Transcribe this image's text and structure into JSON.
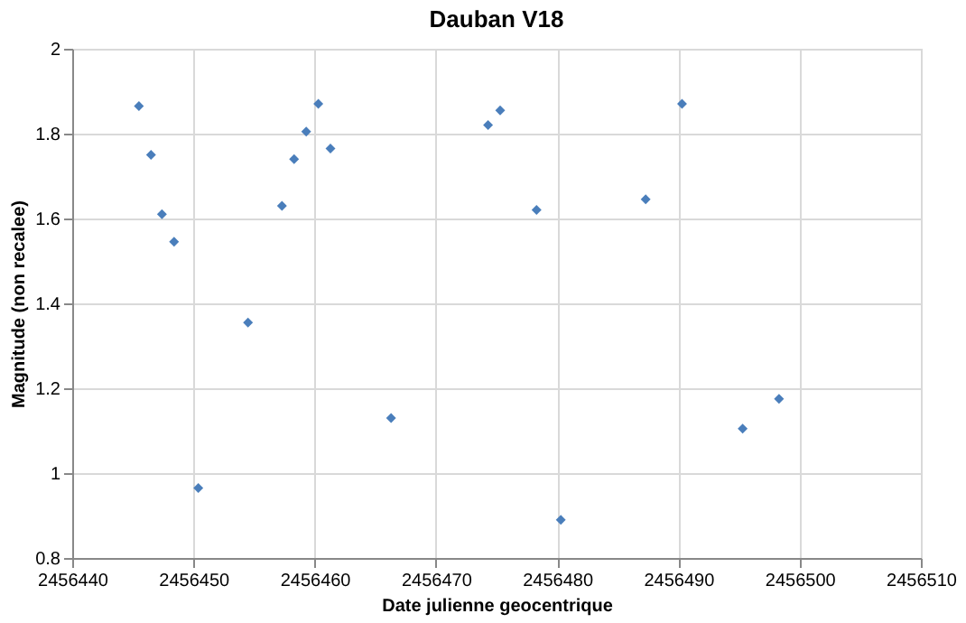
{
  "chart_data": {
    "type": "scatter",
    "title": "Dauban V18",
    "xlabel": "Date julienne geocentrique",
    "ylabel": "Magnitude (non recalee)",
    "x": [
      2456445.5,
      2456446.5,
      2456447.4,
      2456448.4,
      2456450.4,
      2456454.5,
      2456457.3,
      2456458.3,
      2456459.3,
      2456460.3,
      2456461.3,
      2456466.3,
      2456474.3,
      2456475.3,
      2456478.3,
      2456480.3,
      2456487.3,
      2456490.3,
      2456495.3,
      2456498.3
    ],
    "series": [
      {
        "color": "#4a7ebb",
        "values": [
          1.865,
          1.75,
          1.61,
          1.545,
          0.965,
          1.355,
          1.63,
          1.74,
          1.805,
          1.87,
          1.765,
          1.13,
          1.82,
          1.855,
          1.62,
          0.89,
          1.645,
          1.87,
          1.105,
          1.175
        ]
      }
    ],
    "xlim": [
      2456440,
      2456510
    ],
    "xticks": [
      2456440,
      2456450,
      2456460,
      2456470,
      2456480,
      2456490,
      2456500,
      2456510
    ],
    "ylim": [
      0.8,
      2
    ],
    "yticks": [
      0.8,
      1,
      1.2,
      1.4,
      1.6,
      1.8,
      2
    ],
    "grid": true,
    "marker": "diamond"
  }
}
